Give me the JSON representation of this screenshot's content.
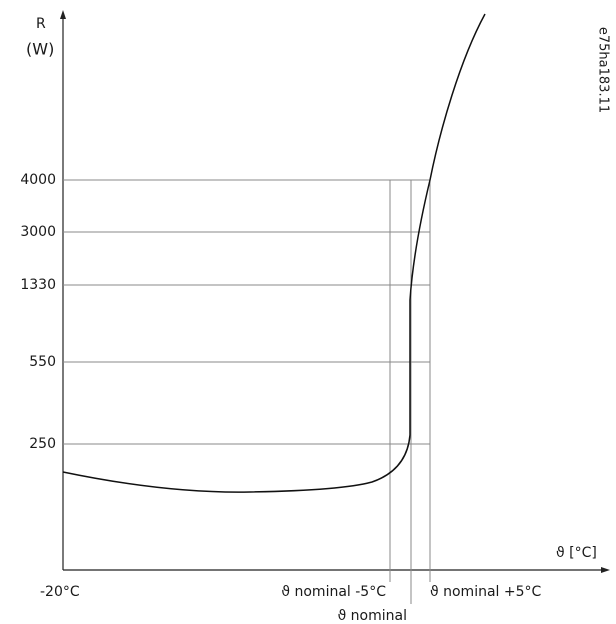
{
  "axes": {
    "y_label": "R",
    "y_unit": "(W)",
    "x_label": "ϑ [°C]"
  },
  "y_ticks": [
    "4000",
    "3000",
    "1330",
    "550",
    "250"
  ],
  "x_labels": {
    "left": "-20°C",
    "minus": "ϑ  nominal  -5°C",
    "nominal": "ϑ  nominal",
    "plus": "ϑ nominal   +5°C"
  },
  "figure_id": "e75ha183.11"
}
